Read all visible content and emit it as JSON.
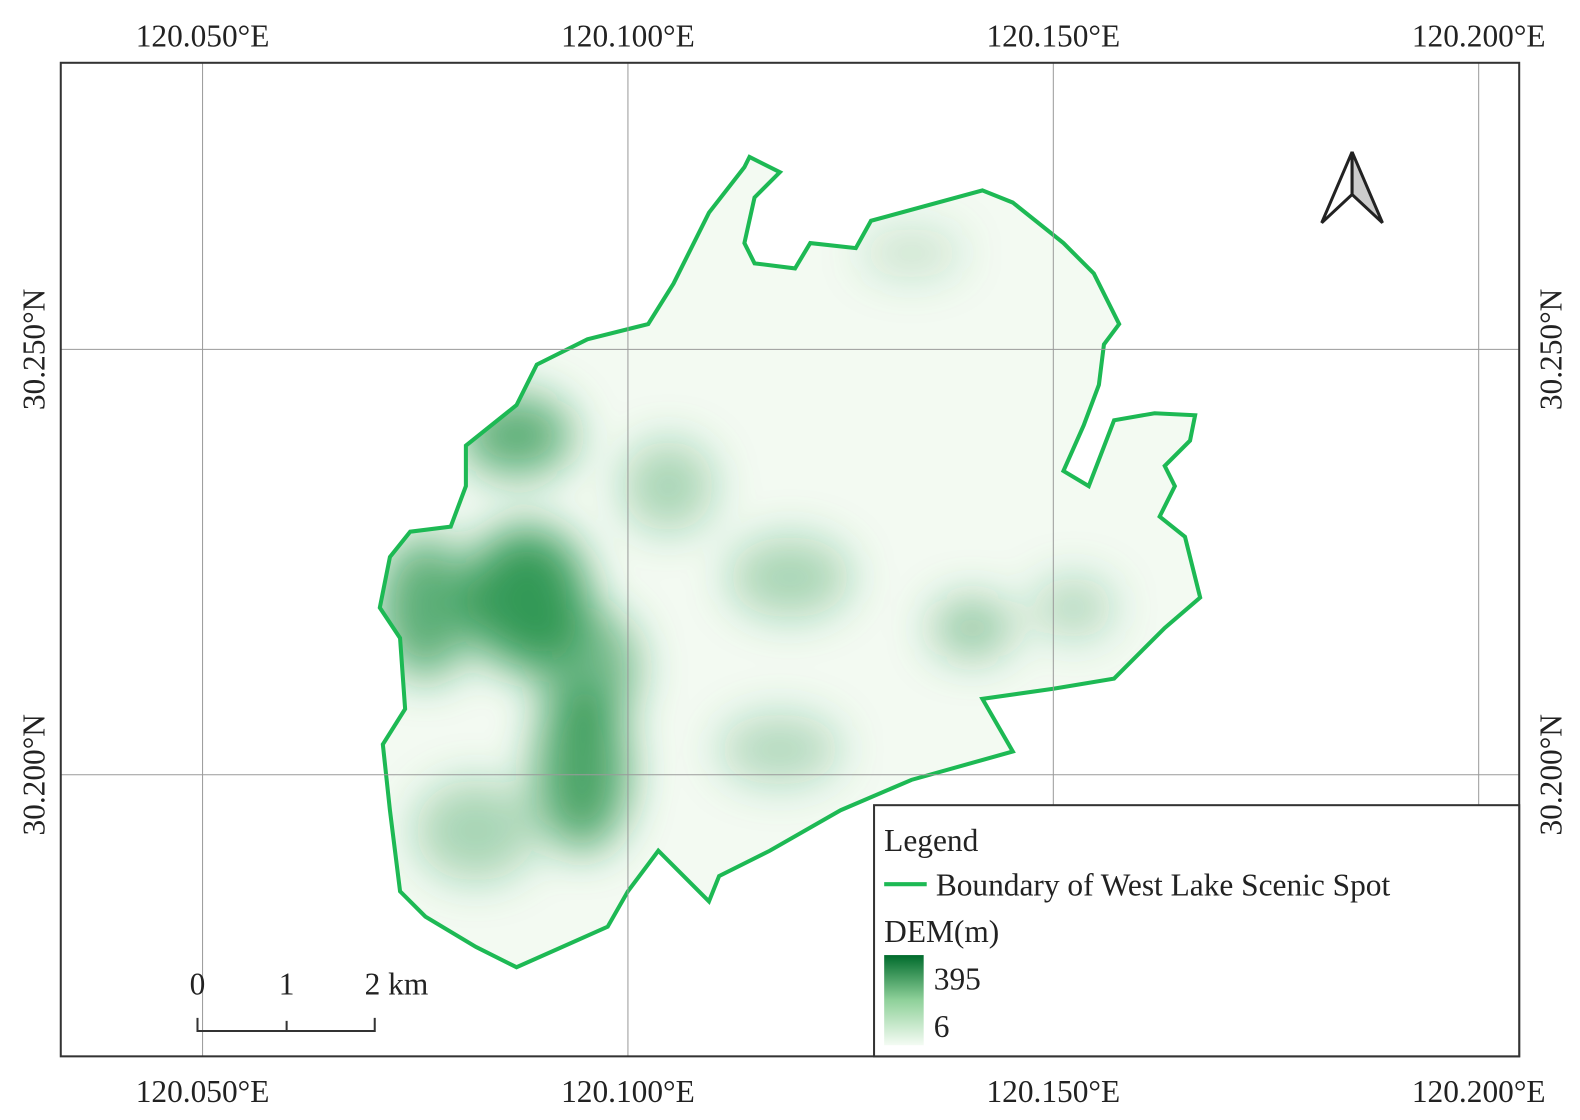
{
  "axes": {
    "x_labels": [
      "120.050°E",
      "120.100°E",
      "120.150°E",
      "120.200°E"
    ],
    "y_labels": [
      "30.250°N",
      "30.200°N"
    ]
  },
  "legend": {
    "title": "Legend",
    "boundary": "Boundary of West Lake Scenic Spot",
    "dem_title": "DEM(m)",
    "dem_max": 395,
    "dem_min": 6
  },
  "scale_bar": {
    "labels": [
      "0",
      "1",
      "2 km"
    ]
  }
}
